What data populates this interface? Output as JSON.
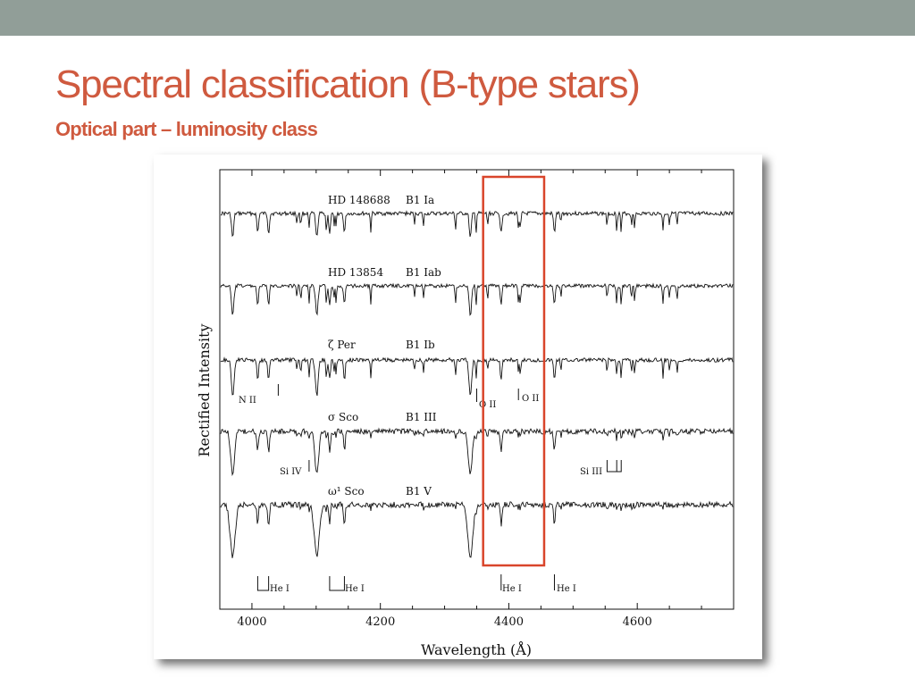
{
  "slide": {
    "title": "Spectral classification (B-type stars)",
    "subtitle": "Optical part – luminosity class"
  },
  "colors": {
    "title": "#cf5a3f",
    "top_bar": "#919e98",
    "highlight_box": "#d9452b",
    "ink": "#111111"
  },
  "chart_data": {
    "type": "line",
    "title": "",
    "xlabel": "Wavelength (Å)",
    "ylabel": "Rectified Intensity",
    "xlim": [
      3950,
      4750
    ],
    "xticks": [
      4000,
      4200,
      4400,
      4600
    ],
    "tick_labels": [
      "4000",
      "4200",
      "4400",
      "4600"
    ],
    "grid": false,
    "series": [
      {
        "star": "HD  148688",
        "spectral_type": "B1  Ia"
      },
      {
        "star": "HD  13854",
        "spectral_type": "B1  Iab"
      },
      {
        "star": "ζ  Per",
        "spectral_type": "B1  Ib"
      },
      {
        "star": "σ  Sco",
        "spectral_type": "B1  III"
      },
      {
        "star": "ω¹  Sco",
        "spectral_type": "B1  V"
      }
    ],
    "highlight_region": [
      4360,
      4455
    ],
    "line_labels": [
      {
        "id": "n2",
        "text": "N II",
        "wavelength": 4041
      },
      {
        "id": "o2a",
        "text": "O II",
        "wavelength": 4350
      },
      {
        "id": "o2b",
        "text": "O II",
        "wavelength": 4415
      },
      {
        "id": "si4",
        "text": "Si IV",
        "wavelength": 4089
      },
      {
        "id": "si3",
        "text": "Si III",
        "wavelength": 4553
      },
      {
        "id": "he1a",
        "text": "He I",
        "wavelength": 4009
      },
      {
        "id": "he1b",
        "text": "He I",
        "wavelength": 4121
      },
      {
        "id": "he1c",
        "text": "He I",
        "wavelength": 4388
      },
      {
        "id": "he1d",
        "text": "He I",
        "wavelength": 4471
      }
    ]
  }
}
